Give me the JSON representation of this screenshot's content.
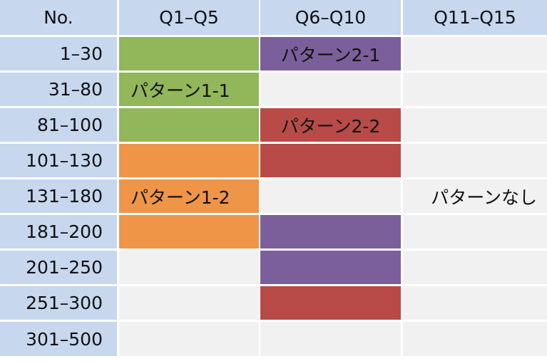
{
  "colors": {
    "header": "#c6d7ee",
    "empty": "#f1f1f1",
    "green": "#92b65a",
    "purple": "#7b5f9b",
    "red": "#b84b48",
    "orange": "#ee9548"
  },
  "columns": [
    "No.",
    "Q1–Q5",
    "Q6–Q10",
    "Q11–Q15"
  ],
  "rows": [
    {
      "label": "1–30",
      "cells": [
        {
          "fill": "green",
          "text": ""
        },
        {
          "fill": "purple",
          "text": "パターン2-1"
        },
        {
          "fill": "empty",
          "text": ""
        }
      ]
    },
    {
      "label": "31–80",
      "cells": [
        {
          "fill": "green",
          "text": "パターン1-1",
          "align": "left"
        },
        {
          "fill": "empty",
          "text": ""
        },
        {
          "fill": "empty",
          "text": ""
        }
      ]
    },
    {
      "label": "81–100",
      "cells": [
        {
          "fill": "green",
          "text": ""
        },
        {
          "fill": "red",
          "text": "パターン2-2"
        },
        {
          "fill": "empty",
          "text": ""
        }
      ]
    },
    {
      "label": "101–130",
      "cells": [
        {
          "fill": "orange",
          "text": ""
        },
        {
          "fill": "red",
          "text": ""
        },
        {
          "fill": "empty",
          "text": ""
        }
      ]
    },
    {
      "label": "131–180",
      "cells": [
        {
          "fill": "orange",
          "text": "パターン1-2",
          "align": "left"
        },
        {
          "fill": "empty",
          "text": ""
        },
        {
          "fill": "empty",
          "text": "パターンなし",
          "align": "right"
        }
      ]
    },
    {
      "label": "181–200",
      "cells": [
        {
          "fill": "orange",
          "text": ""
        },
        {
          "fill": "purple",
          "text": ""
        },
        {
          "fill": "empty",
          "text": ""
        }
      ]
    },
    {
      "label": "201–250",
      "cells": [
        {
          "fill": "empty",
          "text": ""
        },
        {
          "fill": "purple",
          "text": ""
        },
        {
          "fill": "empty",
          "text": ""
        }
      ]
    },
    {
      "label": "251–300",
      "cells": [
        {
          "fill": "empty",
          "text": ""
        },
        {
          "fill": "red",
          "text": ""
        },
        {
          "fill": "empty",
          "text": ""
        }
      ]
    },
    {
      "label": "301–500",
      "cells": [
        {
          "fill": "empty",
          "text": ""
        },
        {
          "fill": "empty",
          "text": ""
        },
        {
          "fill": "empty",
          "text": ""
        }
      ]
    }
  ]
}
